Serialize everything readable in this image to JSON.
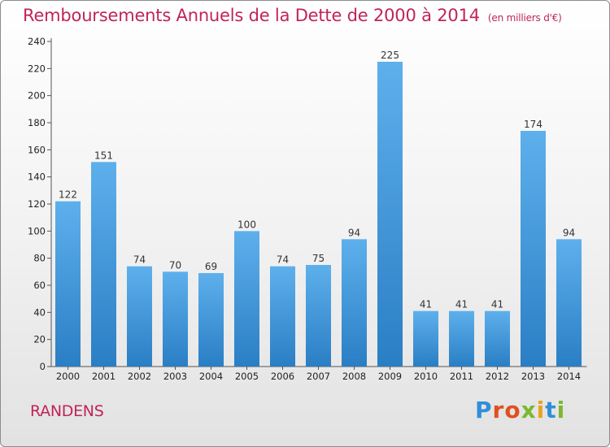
{
  "header": {
    "title": "Remboursements Annuels de la Dette de 2000 à 2014",
    "unit": "(en milliers d'€)"
  },
  "footer": {
    "place": "RANDENS",
    "logo": "Proxiti"
  },
  "colors": {
    "title": "#c0245a",
    "bar_top": "#5eb0ec",
    "bar_bottom": "#2a7ec4"
  },
  "chart_data": {
    "type": "bar",
    "title": "Remboursements Annuels de la Dette de 2000 à 2014",
    "xlabel": "",
    "ylabel": "",
    "ylim": [
      0,
      240
    ],
    "yticks": [
      0,
      20,
      40,
      60,
      80,
      100,
      120,
      140,
      160,
      180,
      200,
      220,
      240
    ],
    "grid": false,
    "categories": [
      "2000",
      "2001",
      "2002",
      "2003",
      "2004",
      "2005",
      "2006",
      "2007",
      "2008",
      "2009",
      "2010",
      "2011",
      "2012",
      "2013",
      "2014"
    ],
    "values": [
      122,
      151,
      74,
      70,
      69,
      100,
      74,
      75,
      94,
      225,
      41,
      41,
      41,
      174,
      94
    ]
  }
}
